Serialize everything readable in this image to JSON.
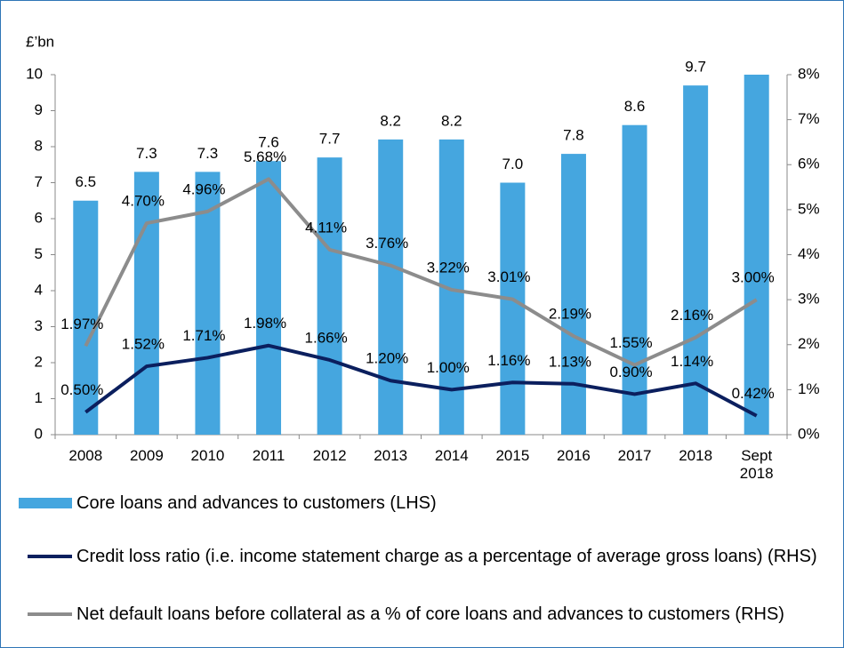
{
  "chart_data": {
    "type": "bar-line",
    "y_label": "£’bn",
    "categories": [
      "2008",
      "2009",
      "2010",
      "2011",
      "2012",
      "2013",
      "2014",
      "2015",
      "2016",
      "2017",
      "2018",
      "Sept 2018"
    ],
    "ylim": [
      0,
      10
    ],
    "yticks": [
      0,
      1,
      2,
      3,
      4,
      5,
      6,
      7,
      8,
      9,
      10
    ],
    "y2lim": [
      0,
      8
    ],
    "y2ticks": [
      {
        "value": 0,
        "label": "0%"
      },
      {
        "value": 1,
        "label": "1%"
      },
      {
        "value": 2,
        "label": "2%"
      },
      {
        "value": 3,
        "label": "3%"
      },
      {
        "value": 4,
        "label": "4%"
      },
      {
        "value": 5,
        "label": "5%"
      },
      {
        "value": 6,
        "label": "6%"
      },
      {
        "value": 7,
        "label": "7%"
      },
      {
        "value": 8,
        "label": "8%"
      }
    ],
    "series": [
      {
        "name": "Core loans and advances to customers (LHS)",
        "type": "bar",
        "color": "#45a6df",
        "values": [
          6.5,
          7.3,
          7.3,
          7.6,
          7.7,
          8.2,
          8.2,
          7.0,
          7.8,
          8.6,
          9.7,
          10.0
        ],
        "value_labels": [
          "6.5",
          "7.3",
          "7.3",
          "7.6",
          "7.7",
          "8.2",
          "8.2",
          "7.0",
          "7.8",
          "8.6",
          "9.7",
          null
        ]
      },
      {
        "name": "Credit loss ratio (i.e. income statement charge as a percentage of average gross loans)  (RHS)",
        "type": "line",
        "axis": "y2",
        "color": "#0b1f5e",
        "values": [
          0.5,
          1.52,
          1.71,
          1.98,
          1.66,
          1.2,
          1.0,
          1.16,
          1.13,
          0.9,
          1.14,
          0.42
        ],
        "value_labels": [
          "0.50%",
          "1.52%",
          "1.71%",
          "1.98%",
          "1.66%",
          "1.20%",
          "1.00%",
          "1.16%",
          "1.13%",
          "0.90%",
          "1.14%",
          "0.42%"
        ]
      },
      {
        "name": "Net default loans before collateral as a % of core loans and advances to customers (RHS)",
        "type": "line",
        "axis": "y2",
        "color": "#8c8c8c",
        "values": [
          1.97,
          4.7,
          4.96,
          5.68,
          4.11,
          3.76,
          3.22,
          3.01,
          2.19,
          1.55,
          2.16,
          3.0
        ],
        "value_labels": [
          "1.97%",
          "4.70%",
          "4.96%",
          "5.68%",
          "4.11%",
          "3.76%",
          "3.22%",
          "3.01%",
          "2.19%",
          "1.55%",
          "2.16%",
          "3.00%"
        ]
      }
    ]
  }
}
